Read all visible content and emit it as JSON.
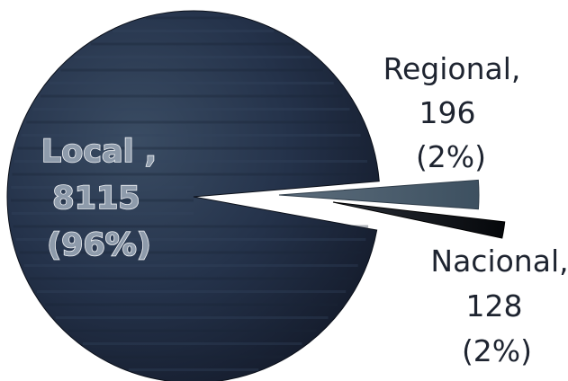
{
  "chart_data": {
    "type": "pie",
    "slices": [
      {
        "label": "Local",
        "value": 8115,
        "percent": "96%",
        "label_lines": [
          "Local ,",
          "8115",
          "(96%)"
        ]
      },
      {
        "label": "Regional",
        "value": 196,
        "percent": "2%",
        "label_lines": [
          "Regional,",
          "196",
          "(2%)"
        ]
      },
      {
        "label": "Nacional",
        "value": 128,
        "percent": "2%",
        "label_lines": [
          "Nacional,",
          "128",
          "(2%)"
        ]
      }
    ],
    "colors": {
      "local_dark": "#141b2b",
      "local_mid": "#2a3a4f",
      "regional": "#3d5060",
      "nacional": "#0d0f14"
    },
    "legend": "none",
    "title": ""
  }
}
